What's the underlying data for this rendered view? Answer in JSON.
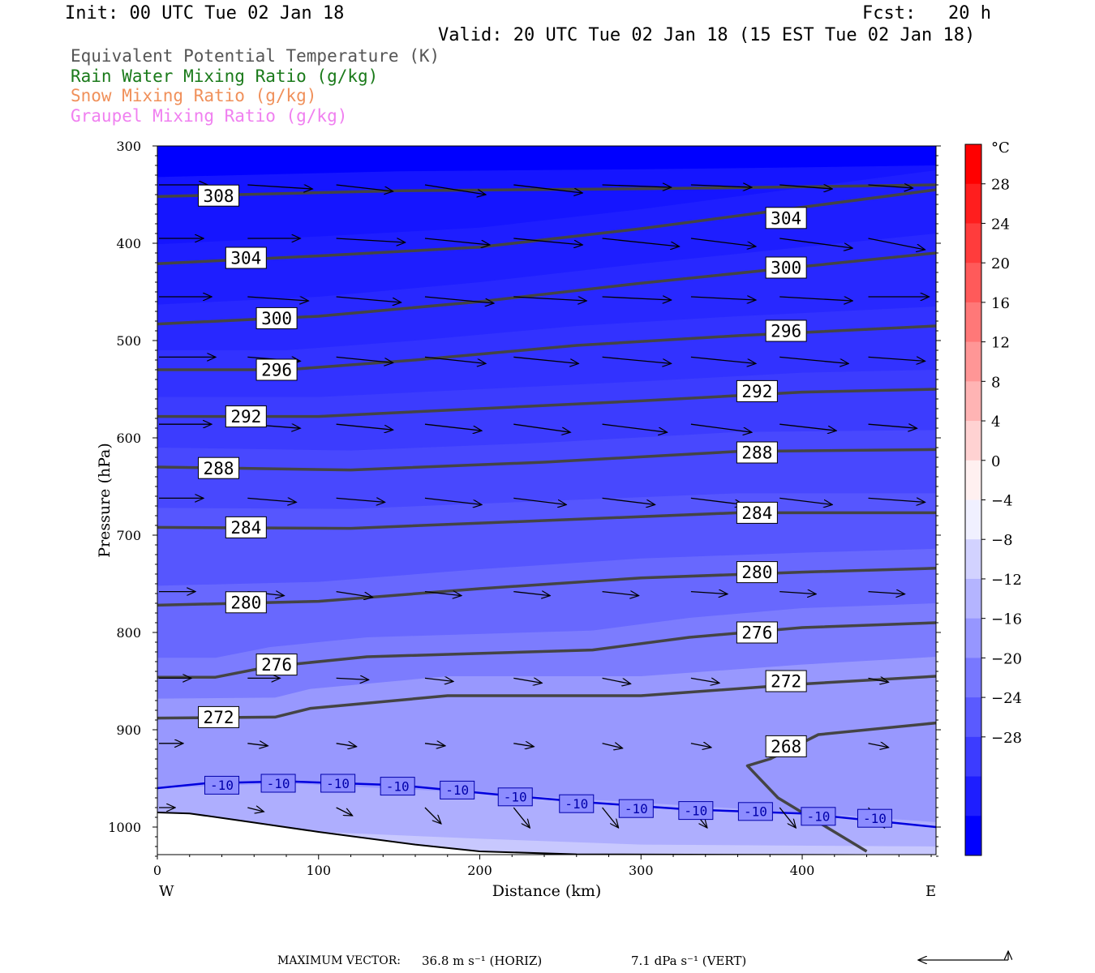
{
  "header": {
    "init": "Init: 00 UTC Tue 02 Jan 18",
    "fcst": "Fcst:   20 h",
    "valid": "Valid: 20 UTC Tue 02 Jan 18 (15 EST Tue 02 Jan 18)"
  },
  "legend": [
    {
      "text": "Equivalent Potential Temperature (K)",
      "color": "#555555"
    },
    {
      "text": "Rain Water Mixing Ratio (g/kg)",
      "color": "#1a7a1a"
    },
    {
      "text": "Snow Mixing Ratio (g/kg)",
      "color": "#f0905a"
    },
    {
      "text": "Graupel Mixing Ratio (g/kg)",
      "color": "#f080f0"
    }
  ],
  "footer": {
    "label": "MAXIMUM VECTOR:",
    "horiz": "36.8 m s⁻¹ (HORIZ)",
    "vert": "7.1 dPa s⁻¹ (VERT)"
  },
  "chart_data": {
    "type": "cross-section",
    "xlabel": "Distance (km)",
    "ylabel": "Pressure (hPa)",
    "x_ticks": [
      0,
      100,
      200,
      300,
      400
    ],
    "x_end_labels": {
      "left": "W",
      "right": "E"
    },
    "xlim": [
      0,
      483
    ],
    "y_ticks": [
      300,
      400,
      500,
      600,
      700,
      800,
      900,
      1000
    ],
    "ylim": [
      300,
      1030
    ],
    "colorbar": {
      "unit": "°C",
      "labels": [
        28,
        24,
        20,
        16,
        12,
        8,
        4,
        0,
        -4,
        -8,
        -12,
        -16,
        -20,
        -24,
        -28
      ],
      "colors": [
        "#ff0000",
        "#ff1e1e",
        "#ff3c3c",
        "#ff5a5a",
        "#ff7878",
        "#ff9696",
        "#ffb4b4",
        "#ffd2d2",
        "#fff0f0",
        "#f0f0ff",
        "#d2d2ff",
        "#b4b4ff",
        "#9696ff",
        "#7878ff",
        "#5a5aff",
        "#3c3cff",
        "#1e1eff",
        "#0000ff"
      ]
    },
    "theta_e_contours": [
      {
        "label": "308",
        "points": [
          [
            0,
            352
          ],
          [
            150,
            346
          ],
          [
            300,
            344
          ],
          [
            400,
            342
          ],
          [
            483,
            340
          ]
        ],
        "label_pos": [
          [
            38,
            351
          ]
        ]
      },
      {
        "label": "304",
        "points": [
          [
            0,
            421
          ],
          [
            100,
            413
          ],
          [
            200,
            404
          ],
          [
            300,
            385
          ],
          [
            400,
            363
          ],
          [
            483,
            345
          ]
        ],
        "label_pos": [
          [
            55,
            415
          ],
          [
            390,
            374
          ]
        ]
      },
      {
        "label": "300",
        "points": [
          [
            0,
            483
          ],
          [
            100,
            475
          ],
          [
            200,
            460
          ],
          [
            300,
            441
          ],
          [
            400,
            424
          ],
          [
            483,
            410
          ]
        ],
        "label_pos": [
          [
            74,
            477
          ],
          [
            390,
            425
          ]
        ]
      },
      {
        "label": "296",
        "points": [
          [
            0,
            530
          ],
          [
            80,
            530
          ],
          [
            160,
            520
          ],
          [
            260,
            505
          ],
          [
            360,
            495
          ],
          [
            483,
            485
          ]
        ],
        "label_pos": [
          [
            74,
            530
          ],
          [
            390,
            490
          ]
        ]
      },
      {
        "label": "292",
        "points": [
          [
            0,
            578
          ],
          [
            100,
            578
          ],
          [
            200,
            570
          ],
          [
            300,
            562
          ],
          [
            400,
            553
          ],
          [
            483,
            550
          ]
        ],
        "label_pos": [
          [
            55,
            578
          ],
          [
            372,
            552
          ]
        ]
      },
      {
        "label": "288",
        "points": [
          [
            0,
            630
          ],
          [
            120,
            633
          ],
          [
            240,
            625
          ],
          [
            360,
            614
          ],
          [
            483,
            612
          ]
        ],
        "label_pos": [
          [
            38,
            631
          ],
          [
            372,
            615
          ]
        ]
      },
      {
        "label": "284",
        "points": [
          [
            0,
            692
          ],
          [
            120,
            693
          ],
          [
            240,
            685
          ],
          [
            360,
            677
          ],
          [
            483,
            677
          ]
        ],
        "label_pos": [
          [
            55,
            692
          ],
          [
            372,
            677
          ]
        ]
      },
      {
        "label": "280",
        "points": [
          [
            0,
            772
          ],
          [
            100,
            768
          ],
          [
            200,
            755
          ],
          [
            300,
            744
          ],
          [
            400,
            738
          ],
          [
            483,
            734
          ]
        ],
        "label_pos": [
          [
            55,
            769
          ],
          [
            372,
            738
          ]
        ]
      },
      {
        "label": "276",
        "points": [
          [
            0,
            846
          ],
          [
            36,
            846
          ],
          [
            70,
            835
          ],
          [
            130,
            825
          ],
          [
            270,
            818
          ],
          [
            330,
            805
          ],
          [
            400,
            795
          ],
          [
            483,
            790
          ]
        ],
        "label_pos": [
          [
            74,
            833
          ],
          [
            372,
            800
          ]
        ]
      },
      {
        "label": "272",
        "points": [
          [
            0,
            888
          ],
          [
            73,
            887
          ],
          [
            95,
            878
          ],
          [
            180,
            865
          ],
          [
            300,
            865
          ],
          [
            400,
            853
          ],
          [
            483,
            845
          ]
        ],
        "label_pos": [
          [
            38,
            887
          ],
          [
            390,
            850
          ]
        ]
      },
      {
        "label": "268",
        "points": [
          [
            440,
            1025
          ],
          [
            420,
            1005
          ],
          [
            385,
            970
          ],
          [
            366,
            937
          ],
          [
            380,
            930
          ],
          [
            410,
            905
          ],
          [
            483,
            893
          ]
        ],
        "label_pos": [
          [
            390,
            917
          ]
        ]
      }
    ],
    "isotherm": {
      "label": "-10",
      "points": [
        [
          0,
          960
        ],
        [
          30,
          955
        ],
        [
          80,
          953
        ],
        [
          150,
          957
        ],
        [
          220,
          968
        ],
        [
          270,
          975
        ],
        [
          330,
          982
        ],
        [
          400,
          986
        ],
        [
          483,
          1000
        ]
      ],
      "label_pos": [
        [
          40,
          957
        ],
        [
          75,
          955
        ],
        [
          112,
          955
        ],
        [
          149,
          958
        ],
        [
          186,
          962
        ],
        [
          222,
          969
        ],
        [
          260,
          976
        ],
        [
          297,
          981
        ],
        [
          334,
          983
        ],
        [
          371,
          984
        ],
        [
          410,
          989
        ],
        [
          445,
          991
        ]
      ]
    },
    "terrain_p": [
      [
        0,
        985
      ],
      [
        20,
        986
      ],
      [
        50,
        993
      ],
      [
        100,
        1005
      ],
      [
        160,
        1018
      ],
      [
        200,
        1025
      ],
      [
        260,
        1028
      ],
      [
        483,
        1029
      ]
    ],
    "wind_vectors": [
      {
        "p": 340,
        "xs": [
          0,
          55,
          110,
          165,
          220,
          275,
          330,
          385,
          440
        ],
        "len": [
          60,
          80,
          70,
          75,
          85,
          85,
          75,
          65,
          55
        ],
        "yoff": [
          0,
          5,
          8,
          12,
          10,
          3,
          3,
          5,
          4
        ]
      },
      {
        "p": 395,
        "xs": [
          0,
          55,
          110,
          165,
          220,
          275,
          330,
          385,
          440
        ],
        "len": [
          55,
          65,
          85,
          80,
          85,
          95,
          80,
          90,
          70
        ],
        "yoff": [
          0,
          0,
          5,
          8,
          8,
          10,
          10,
          12,
          14
        ]
      },
      {
        "p": 455,
        "xs": [
          0,
          55,
          110,
          165,
          220,
          275,
          330,
          385,
          440
        ],
        "len": [
          65,
          75,
          80,
          85,
          90,
          85,
          80,
          90,
          75
        ],
        "yoff": [
          0,
          5,
          7,
          8,
          5,
          4,
          4,
          5,
          0
        ]
      },
      {
        "p": 517,
        "xs": [
          0,
          55,
          110,
          165,
          220,
          275,
          330,
          385,
          440
        ],
        "len": [
          70,
          65,
          70,
          75,
          80,
          85,
          80,
          85,
          70
        ],
        "yoff": [
          0,
          5,
          7,
          8,
          8,
          8,
          8,
          8,
          5
        ]
      },
      {
        "p": 586,
        "xs": [
          0,
          55,
          110,
          165,
          220,
          275,
          330,
          385,
          440
        ],
        "len": [
          65,
          65,
          70,
          70,
          70,
          80,
          75,
          70,
          60
        ],
        "yoff": [
          0,
          5,
          7,
          8,
          10,
          10,
          10,
          8,
          5
        ]
      },
      {
        "p": 662,
        "xs": [
          0,
          55,
          110,
          165,
          220,
          275,
          330,
          385,
          440
        ],
        "len": [
          55,
          60,
          60,
          70,
          65,
          65,
          65,
          65,
          70
        ],
        "yoff": [
          0,
          5,
          5,
          8,
          8,
          8,
          8,
          8,
          5
        ]
      },
      {
        "p": 758,
        "xs": [
          0,
          55,
          110,
          165,
          220,
          275,
          330,
          385,
          440
        ],
        "len": [
          45,
          45,
          45,
          45,
          45,
          45,
          45,
          45,
          45
        ],
        "yoff": [
          0,
          5,
          7,
          5,
          5,
          5,
          3,
          3,
          3
        ]
      },
      {
        "p": 847,
        "xs": [
          0,
          55,
          110,
          165,
          220,
          275,
          330,
          385,
          440
        ],
        "len": [
          40,
          40,
          40,
          35,
          35,
          35,
          35,
          30,
          25
        ],
        "yoff": [
          0,
          0,
          2,
          4,
          6,
          7,
          6,
          5,
          5
        ]
      },
      {
        "p": 914,
        "xs": [
          0,
          55,
          110,
          165,
          220,
          275,
          330,
          385,
          440
        ],
        "len": [
          30,
          25,
          25,
          25,
          25,
          25,
          25,
          25,
          25
        ],
        "yoff": [
          0,
          3,
          4,
          3,
          4,
          6,
          5,
          5,
          5
        ]
      },
      {
        "p": 980,
        "xs": [
          0,
          55,
          110,
          165,
          220,
          275,
          330,
          385,
          440
        ],
        "len": [
          20,
          20,
          20,
          20,
          20,
          20,
          20,
          20,
          20
        ],
        "yoff": [
          0,
          5,
          10,
          20,
          25,
          25,
          25,
          25,
          25
        ]
      }
    ]
  }
}
